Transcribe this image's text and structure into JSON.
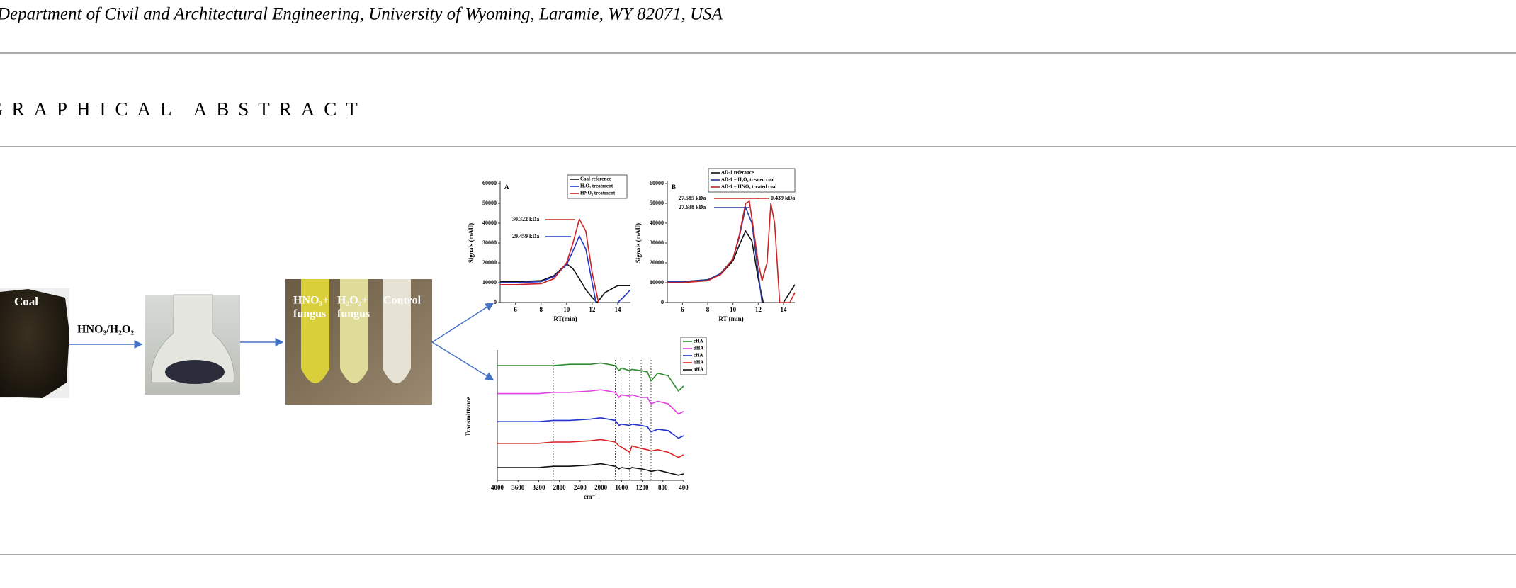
{
  "header": {
    "affiliation": "Department of Civil and Architectural Engineering, University of Wyoming, Laramie, WY 82071, USA"
  },
  "section": {
    "title": "GRAPHICAL ABSTRACT"
  },
  "graphical_abstract": {
    "photos": {
      "coal": "Coal",
      "reaction": "HNO₃/H₂O₂",
      "tubes": [
        [
          "HNO₃+",
          "fungus"
        ],
        [
          "H₂O₂+",
          "fungus"
        ],
        [
          "Control"
        ]
      ]
    },
    "charts": [
      {
        "type": "line",
        "label": "A",
        "ylabel": "Signals (mAU)",
        "xlabel": "RT(min)",
        "xlim": [
          4.8,
          15
        ],
        "ylim": [
          0,
          60000
        ],
        "xticks": [
          6,
          8,
          10,
          12,
          14
        ],
        "yticks": [
          0,
          10000,
          20000,
          30000,
          40000,
          50000,
          60000
        ],
        "series": [
          {
            "name": "Coal reference",
            "color": "#111111",
            "x": [
              4.8,
              6,
              8,
              9,
              10,
              10.5,
              11,
              11.5,
              12,
              12.4,
              13,
              14,
              15
            ],
            "values": [
              10500,
              10500,
              11000,
              13500,
              19500,
              17000,
              12000,
              6500,
              2500,
              0,
              5000,
              8500,
              8500
            ]
          },
          {
            "name": "H₂O₂ treatment",
            "color": "#2233cc",
            "x": [
              4.8,
              6,
              8,
              9,
              10,
              10.5,
              11,
              11.5,
              12,
              12.3,
              13.2,
              14,
              14.5,
              15
            ],
            "values": [
              10000,
              10000,
              10500,
              13000,
              19000,
              26000,
              33500,
              27000,
              10000,
              0,
              null,
              0,
              3000,
              6500
            ]
          },
          {
            "name": "HNO₃ treatment",
            "color": "#cc2222",
            "x": [
              4.8,
              6,
              8,
              9,
              10,
              10.5,
              11,
              11.5,
              12,
              12.5
            ],
            "values": [
              9000,
              9000,
              9500,
              12000,
              20000,
              30000,
              42000,
              36000,
              15000,
              0
            ]
          }
        ],
        "annotations": [
          "30.322 kDa",
          "29.459 kDa"
        ]
      },
      {
        "type": "line",
        "label": "B",
        "ylabel": "Signals (mAU)",
        "xlabel": "RT (min)",
        "xlim": [
          4.8,
          14.9
        ],
        "ylim": [
          0,
          60000
        ],
        "xticks": [
          6,
          8,
          10,
          12,
          14
        ],
        "yticks": [
          0,
          10000,
          20000,
          30000,
          40000,
          50000,
          60000
        ],
        "series": [
          {
            "name": "AD-1 referance",
            "color": "#111111",
            "x": [
              4.8,
              6,
              8,
              9,
              10,
              10.5,
              11,
              11.5,
              12,
              12.4,
              13,
              14,
              14.9
            ],
            "values": [
              10500,
              10500,
              11500,
              14000,
              21000,
              29000,
              36000,
              31000,
              12000,
              0,
              null,
              0,
              9000
            ]
          },
          {
            "name": "AD-1 + H₂O₂ treated coal",
            "color": "#2a3a9a",
            "x": [
              4.8,
              6,
              8,
              9,
              10,
              10.5,
              11,
              11.5,
              12,
              12.3
            ],
            "values": [
              10500,
              10500,
              11500,
              14500,
              22000,
              33000,
              48000,
              40000,
              15000,
              0
            ]
          },
          {
            "name": "AD-1 + HNO₃ treated coal",
            "color": "#cc2222",
            "x": [
              4.8,
              6,
              8,
              9,
              10,
              10.5,
              11,
              11.3,
              11.6,
              12,
              12.3,
              12.7,
              13,
              13.3,
              13.7,
              14,
              14.5,
              14.9
            ],
            "values": [
              10000,
              10000,
              11000,
              14000,
              22000,
              34000,
              50000,
              51000,
              38000,
              20000,
              11000,
              20000,
              50000,
              40000,
              0,
              0,
              0,
              5000
            ]
          }
        ],
        "annotations": [
          "27.585 kDa",
          "27.638 kDa",
          "0.439 kDa"
        ]
      },
      {
        "type": "line",
        "ylabel": "Transmittance",
        "xlabel": "cm⁻¹",
        "xlim": [
          4000,
          400
        ],
        "ylim": [
          0,
          100
        ],
        "xticks": [
          4000,
          3600,
          3200,
          2800,
          2400,
          2000,
          1600,
          1200,
          800,
          400
        ],
        "reference_lines": [
          2920,
          1720,
          1610,
          1440,
          1220,
          1030
        ],
        "series": [
          {
            "name": "eHA",
            "color": "#2e8b2e",
            "x": [
              4000,
              3600,
              3200,
              2920,
              2600,
              2200,
              2000,
              1720,
              1650,
              1600,
              1440,
              1400,
              1220,
              1100,
              1030,
              900,
              700,
              500,
              400
            ],
            "values": [
              90,
              90,
              90,
              90,
              91,
              91,
              92,
              90,
              86,
              88,
              86,
              87,
              86,
              85,
              78,
              84,
              82,
              70,
              74
            ]
          },
          {
            "name": "dHA",
            "color": "#e040e0",
            "x": [
              4000,
              3600,
              3200,
              2920,
              2600,
              2200,
              2000,
              1720,
              1650,
              1600,
              1440,
              1400,
              1220,
              1100,
              1030,
              900,
              700,
              500,
              400
            ],
            "values": [
              68,
              68,
              68,
              69,
              69,
              70,
              71,
              69,
              65,
              67,
              66,
              67,
              65,
              65,
              60,
              62,
              60,
              52,
              54
            ]
          },
          {
            "name": "cHA",
            "color": "#2233cc",
            "x": [
              4000,
              3600,
              3200,
              2920,
              2600,
              2200,
              2000,
              1720,
              1650,
              1600,
              1440,
              1400,
              1220,
              1100,
              1030,
              900,
              700,
              500,
              400
            ],
            "values": [
              46,
              46,
              46,
              47,
              47,
              48,
              49,
              47,
              43,
              44,
              43,
              44,
              43,
              42,
              38,
              40,
              39,
              33,
              35
            ]
          },
          {
            "name": "bHA",
            "color": "#dd2222",
            "x": [
              4000,
              3600,
              3200,
              2920,
              2600,
              2200,
              2000,
              1720,
              1650,
              1600,
              1440,
              1400,
              1220,
              1100,
              1030,
              900,
              700,
              500,
              400
            ],
            "values": [
              29,
              29,
              29,
              30,
              30,
              31,
              32,
              30,
              27,
              26,
              22,
              27,
              25,
              24,
              23,
              24,
              22,
              18,
              20
            ]
          },
          {
            "name": "aHA",
            "color": "#111111",
            "x": [
              4000,
              3600,
              3200,
              2920,
              2600,
              2200,
              2000,
              1720,
              1650,
              1600,
              1440,
              1400,
              1220,
              1100,
              1030,
              900,
              700,
              500,
              400
            ],
            "values": [
              10,
              10,
              10,
              11,
              11,
              12,
              13,
              11,
              9,
              10,
              9,
              10,
              9,
              8,
              7,
              8,
              6,
              4,
              5
            ]
          }
        ]
      }
    ]
  }
}
